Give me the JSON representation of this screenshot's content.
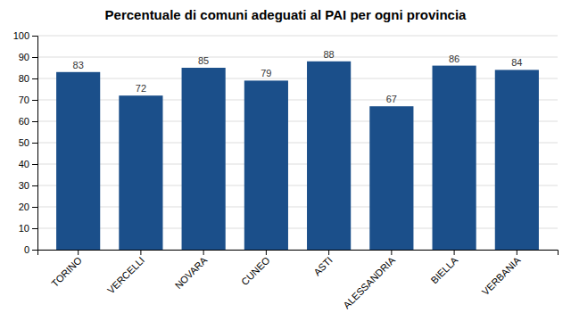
{
  "chart_data": {
    "type": "bar",
    "title": "Percentuale di comuni adeguati al PAI per ogni provincia",
    "categories": [
      "TORINO",
      "VERCELLI",
      "NOVARA",
      "CUNEO",
      "ASTI",
      "ALESSANDRIA",
      "BIELLA",
      "VERBANIA"
    ],
    "values": [
      83,
      72,
      85,
      79,
      88,
      67,
      86,
      84
    ],
    "color": "#1B4F8A",
    "ylim": [
      0,
      100
    ],
    "yticks": [
      0,
      10,
      20,
      30,
      40,
      50,
      60,
      70,
      80,
      90,
      100
    ],
    "grid": true,
    "data_labels": true
  }
}
